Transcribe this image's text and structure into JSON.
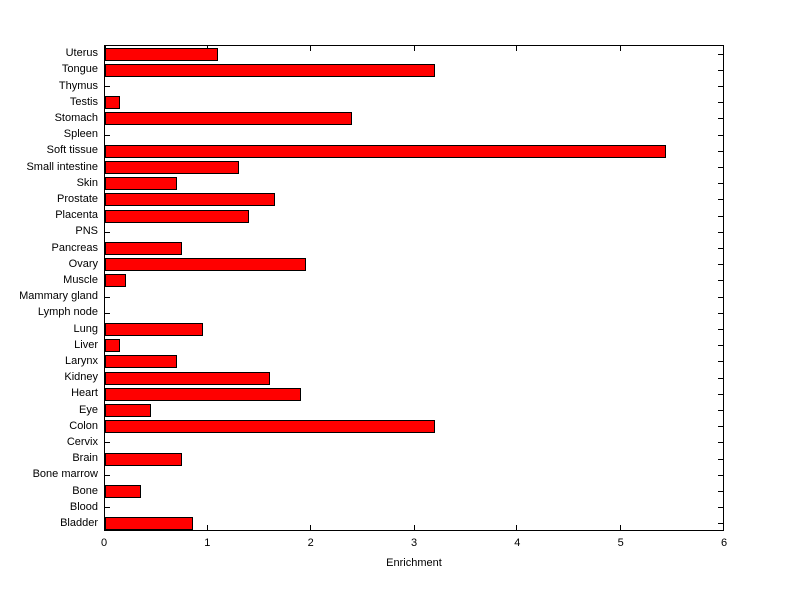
{
  "chart_data": {
    "type": "bar",
    "orientation": "horizontal",
    "title": "",
    "xlabel": "Enrichment",
    "ylabel": "",
    "xlim": [
      0,
      6
    ],
    "xticks": [
      0,
      1,
      2,
      3,
      4,
      5,
      6
    ],
    "grid": false,
    "legend": false,
    "bar_color": "#ff0000",
    "bar_edge_color": "#000000",
    "categories": [
      "Uterus",
      "Tongue",
      "Thymus",
      "Testis",
      "Stomach",
      "Spleen",
      "Soft tissue",
      "Small intestine",
      "Skin",
      "Prostate",
      "Placenta",
      "PNS",
      "Pancreas",
      "Ovary",
      "Muscle",
      "Mammary gland",
      "Lymph node",
      "Lung",
      "Liver",
      "Larynx",
      "Kidney",
      "Heart",
      "Eye",
      "Colon",
      "Cervix",
      "Brain",
      "Bone marrow",
      "Bone",
      "Blood",
      "Bladder"
    ],
    "values": [
      1.1,
      3.2,
      0,
      0.15,
      2.4,
      0,
      5.45,
      1.3,
      0.7,
      1.65,
      1.4,
      0,
      0.75,
      1.95,
      0.2,
      0,
      0,
      0.95,
      0.15,
      0.7,
      1.6,
      1.9,
      0.45,
      3.2,
      0,
      0.75,
      0,
      0.35,
      0,
      0.85
    ]
  }
}
